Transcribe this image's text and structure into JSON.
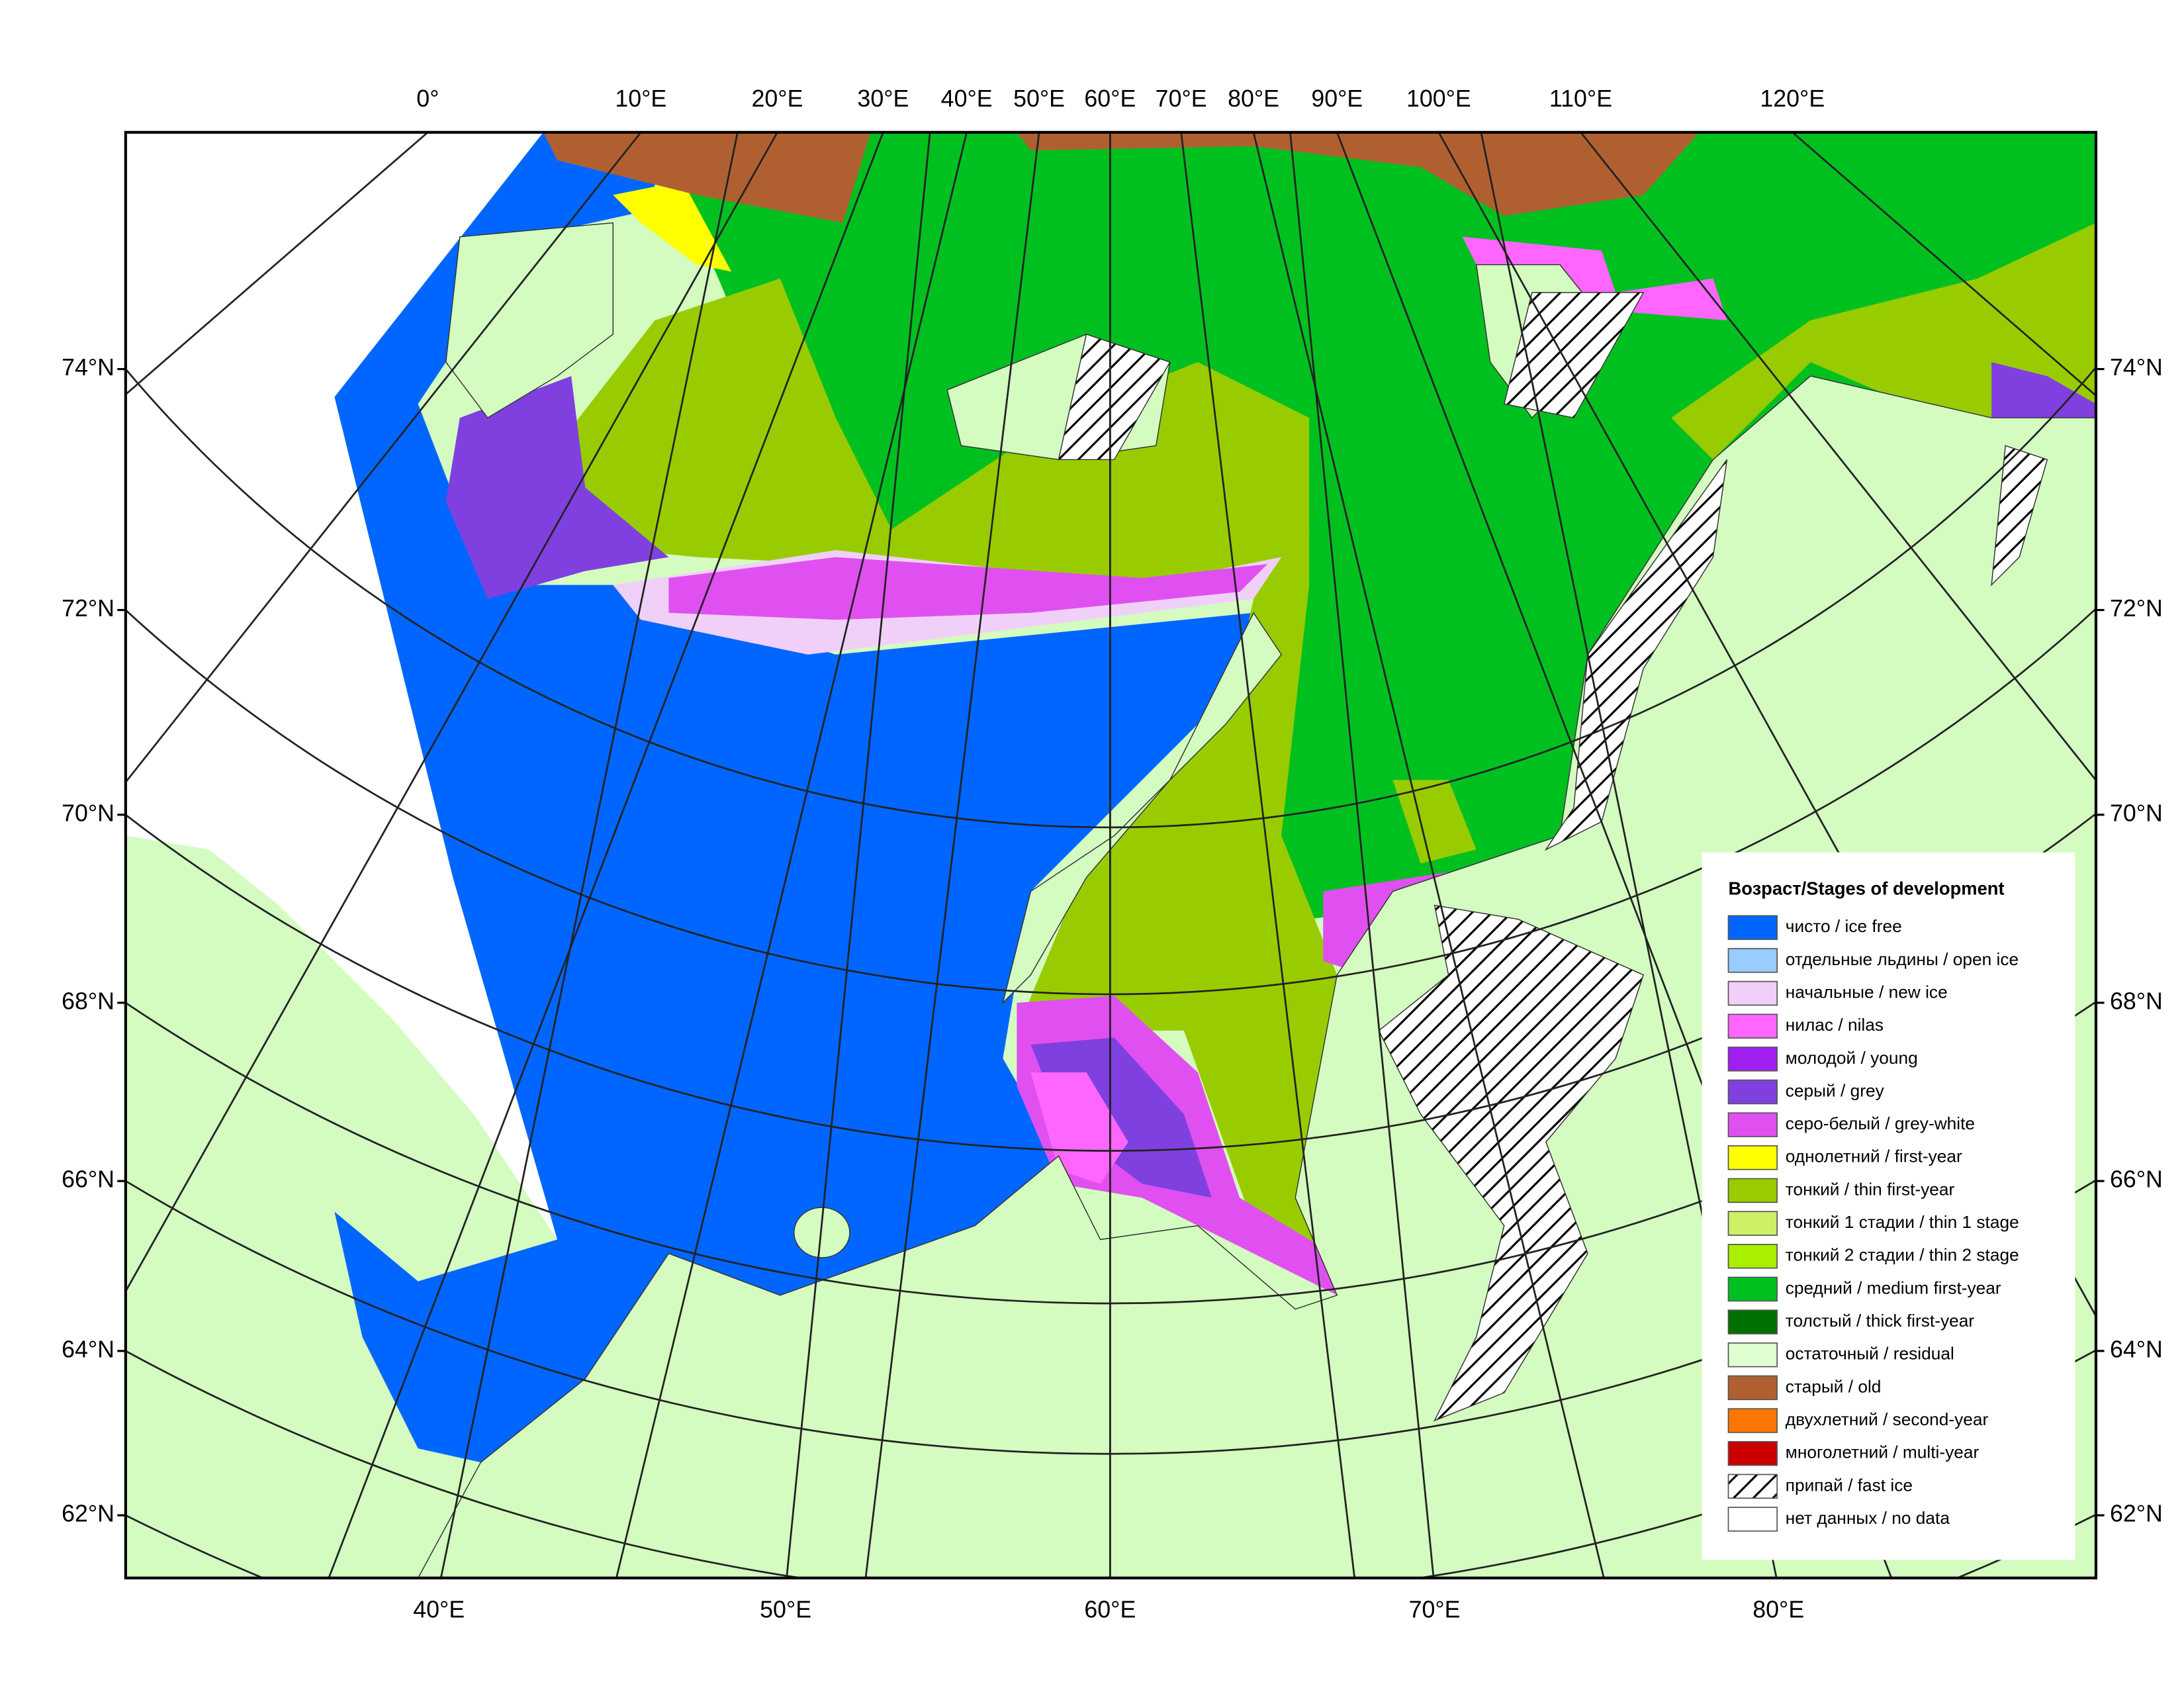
{
  "legend": {
    "title": "Возраст/Stages of development",
    "items": [
      {
        "label": "чисто / ice free",
        "color": "#0066ff"
      },
      {
        "label": "отдельные льдины / open ice",
        "color": "#99ccff"
      },
      {
        "label": "начальные / new ice",
        "color": "#f0d0f8"
      },
      {
        "label": "нилас / nilas",
        "color": "#ff66ff"
      },
      {
        "label": "молодой / young",
        "color": "#a020f0"
      },
      {
        "label": "серый / grey",
        "color": "#8040e0"
      },
      {
        "label": "серо-белый / grey-white",
        "color": "#e050f0"
      },
      {
        "label": "однолетний / first-year",
        "color": "#ffff00"
      },
      {
        "label": "тонкий / thin first-year",
        "color": "#99cc00"
      },
      {
        "label": "тонкий 1 стадии / thin 1 stage",
        "color": "#ccf066"
      },
      {
        "label": "тонкий 2 стадии / thin 2 stage",
        "color": "#aaee00"
      },
      {
        "label": "средний / medium first-year",
        "color": "#00c020"
      },
      {
        "label": "толстый / thick first-year",
        "color": "#007000"
      },
      {
        "label": "остаточный / residual",
        "color": "#e0ffd0"
      },
      {
        "label": "старый / old",
        "color": "#b06030"
      },
      {
        "label": "двухлетний / second-year",
        "color": "#ff7700"
      },
      {
        "label": "многолетний / multi-year",
        "color": "#cc0000"
      },
      {
        "label": "припай / fast ice",
        "color": "#ffffff",
        "pattern": "hatch"
      },
      {
        "label": "нет данных / no data",
        "color": "#ffffff"
      }
    ]
  },
  "map": {
    "top_longitudes": [
      "0°",
      "10°E",
      "20°E",
      "30°E",
      "40°E",
      "50°E",
      "60°E",
      "70°E",
      "80°E",
      "90°E",
      "100°E",
      "110°E",
      "120°E"
    ],
    "bottom_longitudes": [
      "40°E",
      "50°E",
      "60°E",
      "70°E",
      "80°E"
    ],
    "latitudes": [
      "74°N",
      "72°N",
      "70°N",
      "68°N",
      "66°N",
      "64°N",
      "62°N"
    ]
  }
}
